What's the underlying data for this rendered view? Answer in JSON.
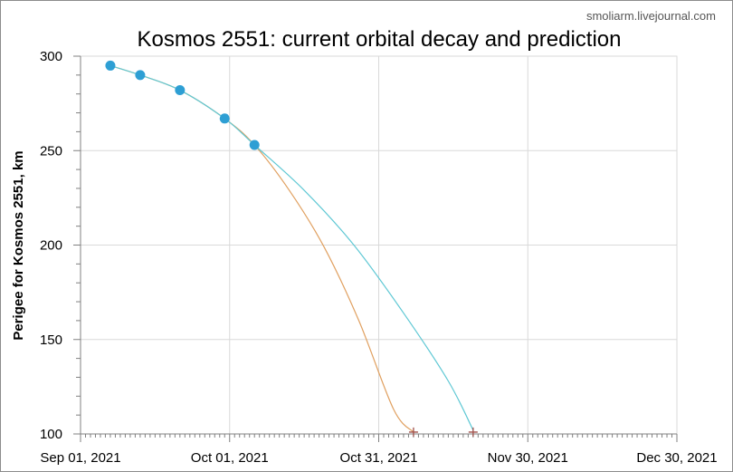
{
  "chart_data": {
    "type": "line",
    "title": "Kosmos 2551: current orbital decay and prediction",
    "credit": "smoliarm.livejournal.com",
    "ylabel": "Perigee for  Kosmos  2551, km",
    "xlabel": "",
    "xlim": [
      "2021-09-01",
      "2021-12-30"
    ],
    "ylim": [
      100,
      300
    ],
    "x_ticks": [
      "Sep 01, 2021",
      "Oct 01, 2021",
      "Oct 31, 2021",
      "Nov 30, 2021",
      "Dec 30, 2021"
    ],
    "y_ticks": [
      "100",
      "150",
      "200",
      "250",
      "300"
    ],
    "grid": true,
    "legend": "none",
    "colors": {
      "observed": "#2e9fd4",
      "fit_orange": "#e0a060",
      "fit_cyan": "#5fc8d4",
      "reentry_marker": "#a0504a"
    },
    "observed_points": [
      {
        "x": "2021-09-07",
        "y": 295
      },
      {
        "x": "2021-09-13",
        "y": 290
      },
      {
        "x": "2021-09-21",
        "y": 282
      },
      {
        "x": "2021-09-30",
        "y": 267
      },
      {
        "x": "2021-10-06",
        "y": 253
      }
    ],
    "series": [
      {
        "color": "#e0a060",
        "points": [
          {
            "x": "2021-09-07",
            "y": 295
          },
          {
            "x": "2021-09-13",
            "y": 290
          },
          {
            "x": "2021-09-21",
            "y": 282
          },
          {
            "x": "2021-09-30",
            "y": 267
          },
          {
            "x": "2021-10-06",
            "y": 253
          },
          {
            "x": "2021-10-13",
            "y": 229
          },
          {
            "x": "2021-10-20",
            "y": 199
          },
          {
            "x": "2021-10-27",
            "y": 160
          },
          {
            "x": "2021-11-03",
            "y": 113
          },
          {
            "x": "2021-11-07",
            "y": 101
          }
        ]
      },
      {
        "color": "#5fc8d4",
        "points": [
          {
            "x": "2021-09-07",
            "y": 295
          },
          {
            "x": "2021-09-13",
            "y": 290
          },
          {
            "x": "2021-09-21",
            "y": 282
          },
          {
            "x": "2021-09-30",
            "y": 267
          },
          {
            "x": "2021-10-06",
            "y": 253
          },
          {
            "x": "2021-10-16",
            "y": 229
          },
          {
            "x": "2021-10-26",
            "y": 200
          },
          {
            "x": "2021-11-05",
            "y": 164
          },
          {
            "x": "2021-11-14",
            "y": 128
          },
          {
            "x": "2021-11-19",
            "y": 102
          }
        ]
      }
    ],
    "reentry_markers": [
      {
        "x": "2021-11-07",
        "y": 101
      },
      {
        "x": "2021-11-19",
        "y": 101
      }
    ]
  }
}
